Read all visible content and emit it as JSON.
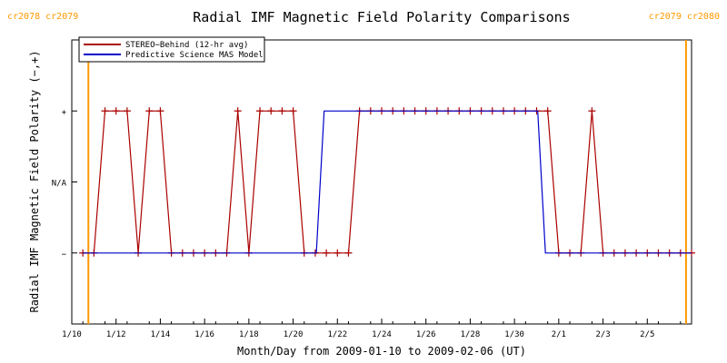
{
  "chart_data": {
    "type": "line",
    "title": "Radial IMF Magnetic Field Polarity Comparisons",
    "xlabel": "Month/Day from 2009-01-10 to 2009-02-06 (UT)",
    "ylabel": "Radial IMF Magnetic Field Polarity (−,+)",
    "x_unit": "days since 2009-01-10 00:00 UT",
    "xlim": [
      0,
      28
    ],
    "ylim": [
      -2,
      2
    ],
    "x_ticks": [
      {
        "x": 0,
        "label": "1/10"
      },
      {
        "x": 2,
        "label": "1/12"
      },
      {
        "x": 4,
        "label": "1/14"
      },
      {
        "x": 6,
        "label": "1/16"
      },
      {
        "x": 8,
        "label": "1/18"
      },
      {
        "x": 10,
        "label": "1/20"
      },
      {
        "x": 12,
        "label": "1/22"
      },
      {
        "x": 14,
        "label": "1/24"
      },
      {
        "x": 16,
        "label": "1/26"
      },
      {
        "x": 18,
        "label": "1/28"
      },
      {
        "x": 20,
        "label": "1/30"
      },
      {
        "x": 22,
        "label": "2/1"
      },
      {
        "x": 24,
        "label": "2/3"
      },
      {
        "x": 26,
        "label": "2/5"
      }
    ],
    "y_ticks": [
      {
        "y": 1,
        "label": "+"
      },
      {
        "y": 0,
        "label": "N/A"
      },
      {
        "y": -1,
        "label": "−"
      }
    ],
    "grid": false,
    "legend_position": "top-left",
    "carrington_markers": [
      {
        "x": 0.75,
        "label": "cr2078 cr2079",
        "side": "left"
      },
      {
        "x": 27.75,
        "label": "cr2079 cr2080",
        "side": "right"
      }
    ],
    "series": [
      {
        "name": "STEREO−Behind (12-hr avg)",
        "color": "#aa0000",
        "marker": "plus",
        "x": [
          0.5,
          1.0,
          1.5,
          2.0,
          2.5,
          3.0,
          3.5,
          4.0,
          4.5,
          5.0,
          5.5,
          6.0,
          6.5,
          7.0,
          7.5,
          8.0,
          8.5,
          9.0,
          9.5,
          10.0,
          10.5,
          11.0,
          11.5,
          12.0,
          12.5,
          13.0,
          13.5,
          14.0,
          14.5,
          15.0,
          15.5,
          16.0,
          16.5,
          17.0,
          17.5,
          18.0,
          18.5,
          19.0,
          19.5,
          20.0,
          20.5,
          21.0,
          21.5,
          22.0,
          22.5,
          23.0,
          23.5,
          24.0,
          24.5,
          25.0,
          25.5,
          26.0,
          26.5,
          27.0,
          27.5,
          28.0
        ],
        "y": [
          -1,
          -1,
          1,
          1,
          1,
          -1,
          1,
          1,
          -1,
          -1,
          -1,
          -1,
          -1,
          -1,
          1,
          -1,
          1,
          1,
          1,
          1,
          -1,
          -1,
          -1,
          -1,
          -1,
          1,
          1,
          1,
          1,
          1,
          1,
          1,
          1,
          1,
          1,
          1,
          1,
          1,
          1,
          1,
          1,
          1,
          1,
          -1,
          -1,
          -1,
          1,
          -1,
          -1,
          -1,
          -1,
          -1,
          -1,
          -1,
          -1,
          -1
        ]
      },
      {
        "name": "Predictive Science MAS Model",
        "color": "#0000cc",
        "marker": "none",
        "x": [
          0.5,
          11.05,
          11.4,
          21.05,
          21.4,
          28.0
        ],
        "y": [
          -1,
          -1,
          1,
          1,
          -1,
          -1
        ]
      }
    ]
  }
}
